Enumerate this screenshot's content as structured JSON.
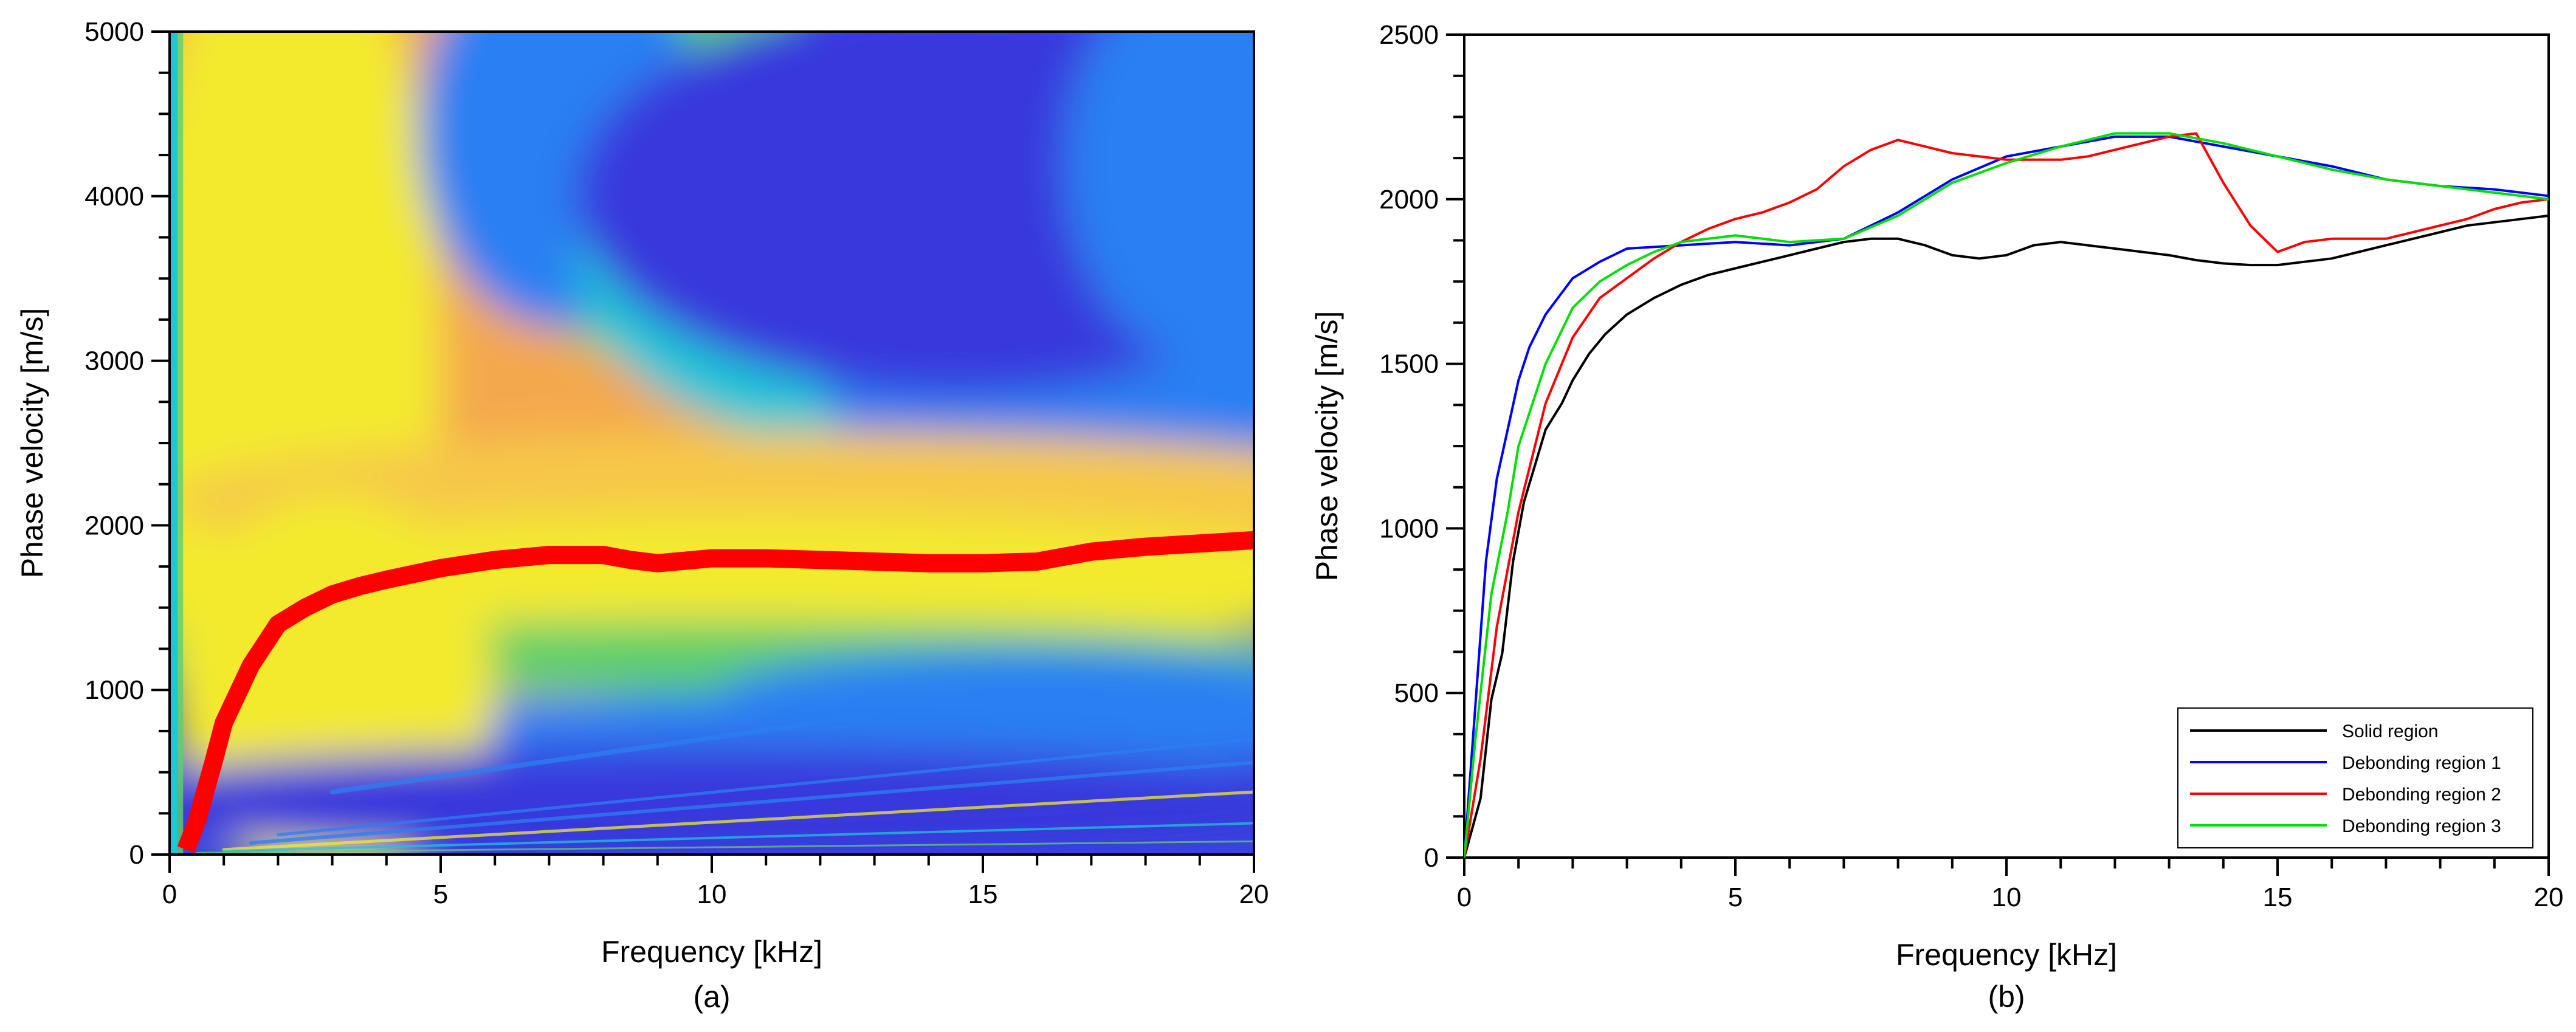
{
  "chart_data": [
    {
      "type": "heatmap",
      "panel_label": "(a)",
      "xlabel": "Frequency [kHz]",
      "ylabel": "Phase velocity [m/s]",
      "xlim": [
        0,
        20
      ],
      "ylim": [
        0,
        5000
      ],
      "xticks": [
        "0",
        "5",
        "10",
        "15",
        "20"
      ],
      "yticks": [
        "0",
        "1000",
        "2000",
        "3000",
        "4000",
        "5000"
      ],
      "colormap": [
        "#3838dc",
        "#2b7ff2",
        "#1ec6d6",
        "#5fcf6a",
        "#f3ea2f",
        "#f6c84a",
        "#f4a84d"
      ],
      "ridge_color": "#ff0000",
      "dispersion_ridge": {
        "x": [
          0.3,
          0.5,
          0.8,
          1.0,
          1.5,
          2.0,
          2.5,
          3.0,
          3.5,
          4.0,
          5.0,
          6.0,
          7.0,
          8.0,
          8.5,
          9.0,
          10.0,
          11.0,
          12.0,
          13.0,
          14.0,
          15.0,
          16.0,
          17.0,
          18.0,
          19.0,
          20.0
        ],
        "y": [
          30,
          200,
          550,
          800,
          1150,
          1400,
          1500,
          1580,
          1630,
          1670,
          1740,
          1790,
          1820,
          1820,
          1790,
          1770,
          1800,
          1800,
          1790,
          1780,
          1770,
          1770,
          1780,
          1840,
          1870,
          1890,
          1910
        ]
      }
    },
    {
      "type": "line",
      "panel_label": "(b)",
      "xlabel": "Frequency [kHz]",
      "ylabel": "Phase velocity [m/s]",
      "xlim": [
        0,
        20
      ],
      "ylim": [
        0,
        2500
      ],
      "xticks": [
        "0",
        "5",
        "10",
        "15",
        "20"
      ],
      "yticks": [
        "0",
        "500",
        "1000",
        "1500",
        "2000",
        "2500"
      ],
      "legend_position": "bottom-right",
      "series": [
        {
          "name": "Solid region",
          "color": "#000000",
          "x": [
            0,
            0.3,
            0.5,
            0.7,
            0.9,
            1.1,
            1.3,
            1.5,
            1.8,
            2.0,
            2.3,
            2.6,
            3.0,
            3.5,
            4.0,
            4.5,
            5.0,
            5.5,
            6.0,
            6.5,
            7.0,
            7.5,
            8.0,
            8.5,
            9.0,
            9.5,
            10.0,
            10.5,
            11.0,
            11.5,
            12.0,
            12.5,
            13.0,
            13.5,
            14.0,
            14.5,
            15.0,
            15.5,
            16.0,
            16.5,
            17.0,
            17.5,
            18.0,
            18.5,
            19.0,
            19.5,
            20.0
          ],
          "y": [
            0,
            180,
            480,
            620,
            900,
            1080,
            1190,
            1300,
            1380,
            1450,
            1530,
            1590,
            1650,
            1700,
            1740,
            1770,
            1790,
            1810,
            1830,
            1850,
            1870,
            1880,
            1880,
            1860,
            1830,
            1820,
            1830,
            1860,
            1870,
            1860,
            1850,
            1840,
            1830,
            1815,
            1805,
            1800,
            1800,
            1810,
            1820,
            1840,
            1860,
            1880,
            1900,
            1920,
            1930,
            1940,
            1950
          ]
        },
        {
          "name": "Debonding region 1",
          "color": "#0000ff",
          "x": [
            0,
            0.2,
            0.4,
            0.6,
            0.8,
            1.0,
            1.2,
            1.5,
            2.0,
            2.5,
            3.0,
            4.0,
            5.0,
            6.0,
            7.0,
            8.0,
            9.0,
            10.0,
            11.0,
            12.0,
            13.0,
            14.0,
            15.0,
            16.0,
            17.0,
            18.0,
            19.0,
            20.0
          ],
          "y": [
            0,
            450,
            900,
            1150,
            1300,
            1450,
            1550,
            1650,
            1760,
            1810,
            1850,
            1860,
            1870,
            1860,
            1880,
            1960,
            2060,
            2130,
            2160,
            2190,
            2190,
            2160,
            2130,
            2100,
            2060,
            2040,
            2030,
            2010
          ]
        },
        {
          "name": "Debonding region 2",
          "color": "#ff0000",
          "x": [
            0,
            0.3,
            0.6,
            1.0,
            1.5,
            2.0,
            2.5,
            3.0,
            3.5,
            4.0,
            4.5,
            5.0,
            5.5,
            6.0,
            6.5,
            7.0,
            7.5,
            8.0,
            8.5,
            9.0,
            9.5,
            10.0,
            10.5,
            11.0,
            11.5,
            12.0,
            12.5,
            13.0,
            13.5,
            14.0,
            14.5,
            15.0,
            15.5,
            16.0,
            16.5,
            17.0,
            17.5,
            18.0,
            18.5,
            19.0,
            19.5,
            20.0
          ],
          "y": [
            0,
            300,
            700,
            1050,
            1380,
            1580,
            1700,
            1760,
            1820,
            1870,
            1910,
            1940,
            1960,
            1990,
            2030,
            2100,
            2150,
            2180,
            2160,
            2140,
            2130,
            2120,
            2120,
            2120,
            2130,
            2150,
            2170,
            2190,
            2200,
            2050,
            1920,
            1840,
            1870,
            1880,
            1880,
            1880,
            1900,
            1920,
            1940,
            1970,
            1990,
            2000
          ]
        },
        {
          "name": "Debonding region 3",
          "color": "#00e000",
          "x": [
            0,
            0.2,
            0.5,
            0.8,
            1.0,
            1.5,
            2.0,
            2.5,
            3.0,
            3.5,
            4.0,
            5.0,
            6.0,
            7.0,
            8.0,
            9.0,
            10.0,
            11.0,
            12.0,
            13.0,
            14.0,
            15.0,
            16.0,
            17.0,
            18.0,
            19.0,
            20.0
          ],
          "y": [
            0,
            350,
            800,
            1050,
            1250,
            1500,
            1670,
            1750,
            1800,
            1840,
            1870,
            1890,
            1870,
            1880,
            1950,
            2050,
            2110,
            2160,
            2200,
            2200,
            2170,
            2130,
            2090,
            2060,
            2040,
            2020,
            2000
          ]
        }
      ]
    }
  ]
}
